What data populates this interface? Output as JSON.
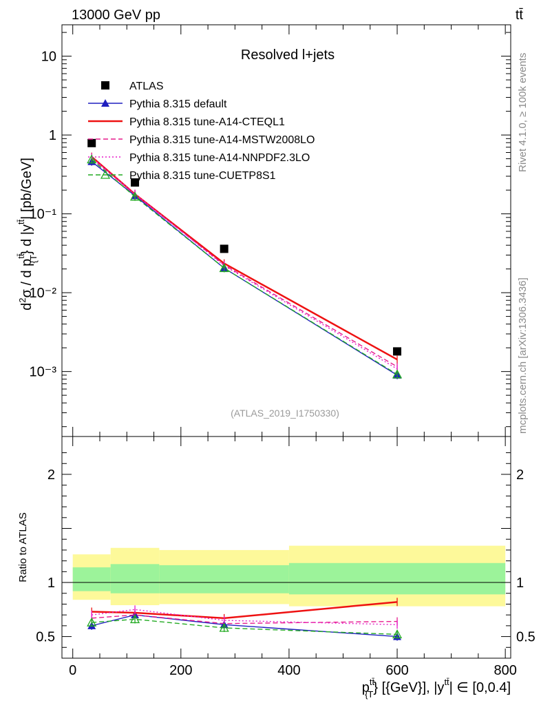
{
  "header": {
    "left": "13000 GeV pp",
    "right": "tt̄"
  },
  "side_text": {
    "rivet": "Rivet 4.1.0, ≥ 100k events",
    "mcplots": "mcplots.cern.ch [arXiv:1306.3436]"
  },
  "chart_data": [
    {
      "type": "line",
      "title": "Resolved l+jets",
      "watermark": "(ATLAS_2019_I1750330)",
      "ylabel": "d²σ / d p_T^{tt̄} d |y^{tt̄}| [pb/GeV]",
      "yscale": "log",
      "xlim": [
        -20,
        810
      ],
      "ylim": [
        0.00015,
        25
      ],
      "x_ticks": [
        0,
        200,
        400,
        600,
        800
      ],
      "y_tick_labels": [
        "10⁻³",
        "10⁻²",
        "10⁻¹",
        "1",
        "10"
      ],
      "y_ticks": [
        0.001,
        0.01,
        0.1,
        1,
        10
      ],
      "x": [
        35,
        115,
        280,
        600
      ],
      "bin_edges": [
        0,
        70,
        160,
        400,
        800
      ],
      "legend_position": "top-left",
      "series": [
        {
          "name": "ATLAS",
          "color": "#000000",
          "style": "marker-square",
          "values": [
            0.79,
            0.25,
            0.036,
            0.0018
          ]
        },
        {
          "name": "Pythia 8.315 default",
          "color": "#1f1fbf",
          "style": "solid-triangle",
          "values": [
            0.46,
            0.17,
            0.0205,
            0.0009
          ]
        },
        {
          "name": "Pythia 8.315 tune-A14-CTEQL1",
          "color": "#ee1111",
          "style": "solid-thick",
          "values": [
            0.53,
            0.178,
            0.0235,
            0.00142
          ]
        },
        {
          "name": "Pythia 8.315 tune-A14-MSTW2008LO",
          "color": "#e6198c",
          "style": "dashed",
          "values": [
            0.51,
            0.175,
            0.0225,
            0.00115
          ]
        },
        {
          "name": "Pythia 8.315 tune-A14-NNPDF2.3LO",
          "color": "#e619c8",
          "style": "dotted",
          "values": [
            0.52,
            0.18,
            0.022,
            0.00108
          ]
        },
        {
          "name": "Pythia 8.315 tune-CUETP8S1",
          "color": "#22aa22",
          "style": "dashed-open-triangle",
          "values": [
            0.49,
            0.165,
            0.0205,
            0.00092
          ]
        }
      ]
    },
    {
      "type": "line",
      "ylabel": "Ratio to ATLAS",
      "xlabel": "p_T^{tt̄} [{GeV}], |y^{tt̄}| ∈ [0,0.4]",
      "xlim": [
        -20,
        810
      ],
      "ylim": [
        0.3,
        2.35
      ],
      "y_ticks": [
        0.5,
        1,
        2
      ],
      "y_tick_labels": [
        "0.5",
        "1",
        "2"
      ],
      "x_ticks": [
        0,
        200,
        400,
        600,
        800
      ],
      "x_tick_labels": [
        "0",
        "200",
        "400",
        "600",
        "800"
      ],
      "bands": {
        "bin_edges": [
          0,
          70,
          160,
          400,
          800
        ],
        "yellow_lo": [
          0.84,
          0.79,
          0.8,
          0.78
        ],
        "yellow_hi": [
          1.26,
          1.32,
          1.3,
          1.34
        ],
        "green_lo": [
          0.92,
          0.9,
          0.9,
          0.89
        ],
        "green_hi": [
          1.14,
          1.17,
          1.16,
          1.18
        ]
      },
      "x": [
        35,
        115,
        280,
        600
      ],
      "series": [
        {
          "name": "Pythia 8.315 default",
          "color": "#1f1fbf",
          "style": "solid-triangle",
          "values": [
            0.6,
            0.7,
            0.61,
            0.5
          ]
        },
        {
          "name": "Pythia 8.315 tune-A14-CTEQL1",
          "color": "#ee1111",
          "style": "solid-thick",
          "values": [
            0.73,
            0.72,
            0.67,
            0.82
          ]
        },
        {
          "name": "Pythia 8.315 tune-A14-MSTW2008LO",
          "color": "#e6198c",
          "style": "dashed",
          "values": [
            0.67,
            0.7,
            0.62,
            0.64
          ]
        },
        {
          "name": "Pythia 8.315 tune-A14-NNPDF2.3LO",
          "color": "#e619c8",
          "style": "dotted",
          "values": [
            0.7,
            0.75,
            0.65,
            0.61
          ]
        },
        {
          "name": "Pythia 8.315 tune-CUETP8S1",
          "color": "#22aa22",
          "style": "dashed-open-triangle",
          "values": [
            0.63,
            0.66,
            0.58,
            0.52
          ]
        }
      ]
    }
  ]
}
